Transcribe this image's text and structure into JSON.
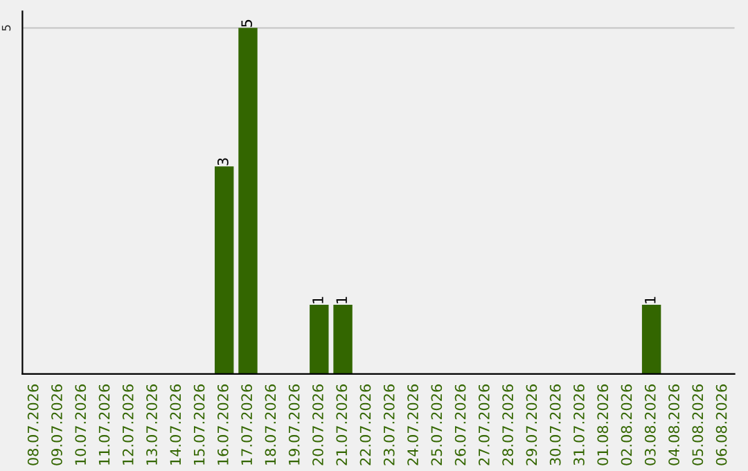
{
  "chart_data": {
    "type": "bar",
    "categories": [
      "08.07.2026",
      "09.07.2026",
      "10.07.2026",
      "11.07.2026",
      "12.07.2026",
      "13.07.2026",
      "14.07.2026",
      "15.07.2026",
      "16.07.2026",
      "17.07.2026",
      "18.07.2026",
      "19.07.2026",
      "20.07.2026",
      "21.07.2026",
      "22.07.2026",
      "23.07.2026",
      "24.07.2026",
      "25.07.2026",
      "26.07.2026",
      "27.07.2026",
      "28.07.2026",
      "29.07.2026",
      "30.07.2026",
      "31.07.2026",
      "01.08.2026",
      "02.08.2026",
      "03.08.2026",
      "04.08.2026",
      "05.08.2026",
      "06.08.2026"
    ],
    "values": [
      0,
      0,
      0,
      0,
      0,
      0,
      0,
      0,
      3,
      5,
      0,
      0,
      1,
      1,
      0,
      0,
      0,
      0,
      0,
      0,
      0,
      0,
      0,
      0,
      0,
      0,
      1,
      0,
      0,
      0
    ],
    "value_labels": [
      null,
      null,
      null,
      null,
      null,
      null,
      null,
      null,
      "3",
      "5",
      null,
      null,
      "1",
      "1",
      null,
      null,
      null,
      null,
      null,
      null,
      null,
      null,
      null,
      null,
      null,
      null,
      "1",
      null,
      null,
      null
    ],
    "color": "#336600",
    "ylim": [
      0,
      5.24
    ],
    "yticks": [
      5
    ],
    "grid": "y"
  }
}
